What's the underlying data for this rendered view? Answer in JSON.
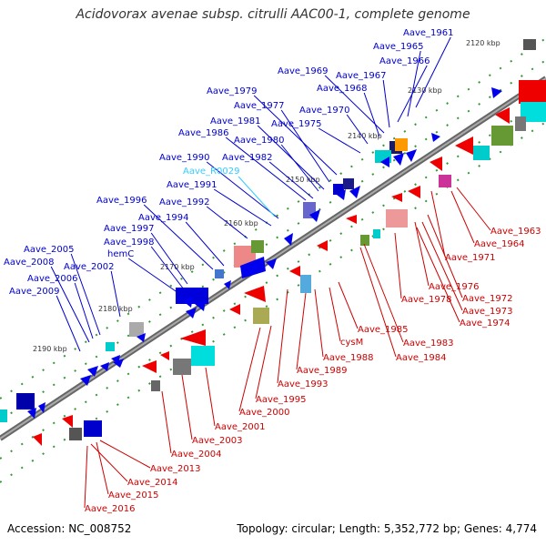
{
  "title": "Acidovorax avenae subsp. citrulli AAC00-1, complete genome",
  "footer": {
    "accession": "Accession: NC_008752",
    "summary": "Topology: circular; Length: 5,352,772 bp; Genes: 4,774"
  },
  "colors": {
    "forward_label": "#0000cc",
    "reverse_label": "#cc0000",
    "rna_label": "#33ccff",
    "backbone": "#888888",
    "tick": "#339933",
    "text": "#333333"
  },
  "scale_labels": [
    "2120 kbp",
    "2130 kbp",
    "2140 kbp",
    "2150 kbp",
    "2160 kbp",
    "2170 kbp",
    "2180 kbp",
    "2190 kbp"
  ],
  "forward_genes": [
    "Aave_1961",
    "Aave_1965",
    "Aave_1966",
    "Aave_1969",
    "Aave_1967",
    "Aave_1968",
    "Aave_1979",
    "Aave_1977",
    "Aave_1970",
    "Aave_1981",
    "Aave_1975",
    "Aave_1986",
    "Aave_1980",
    "Aave_1990",
    "Aave_1982",
    "Aave_R0029",
    "Aave_1991",
    "Aave_1996",
    "Aave_1992",
    "Aave_1994",
    "Aave_1997",
    "Aave_1998",
    "hemC",
    "Aave_2005",
    "Aave_2008",
    "Aave_2002",
    "Aave_2006",
    "Aave_2009"
  ],
  "reverse_genes": [
    "Aave_1963",
    "Aave_1964",
    "Aave_1971",
    "Aave_1976",
    "Aave_1978",
    "Aave_1972",
    "Aave_1973",
    "Aave_1974",
    "Aave_1985",
    "cysM",
    "Aave_1983",
    "Aave_1988",
    "Aave_1984",
    "Aave_1989",
    "Aave_1993",
    "Aave_1995",
    "Aave_2000",
    "Aave_2001",
    "Aave_2003",
    "Aave_2004",
    "Aave_2013",
    "Aave_2014",
    "Aave_2015",
    "Aave_2016"
  ]
}
